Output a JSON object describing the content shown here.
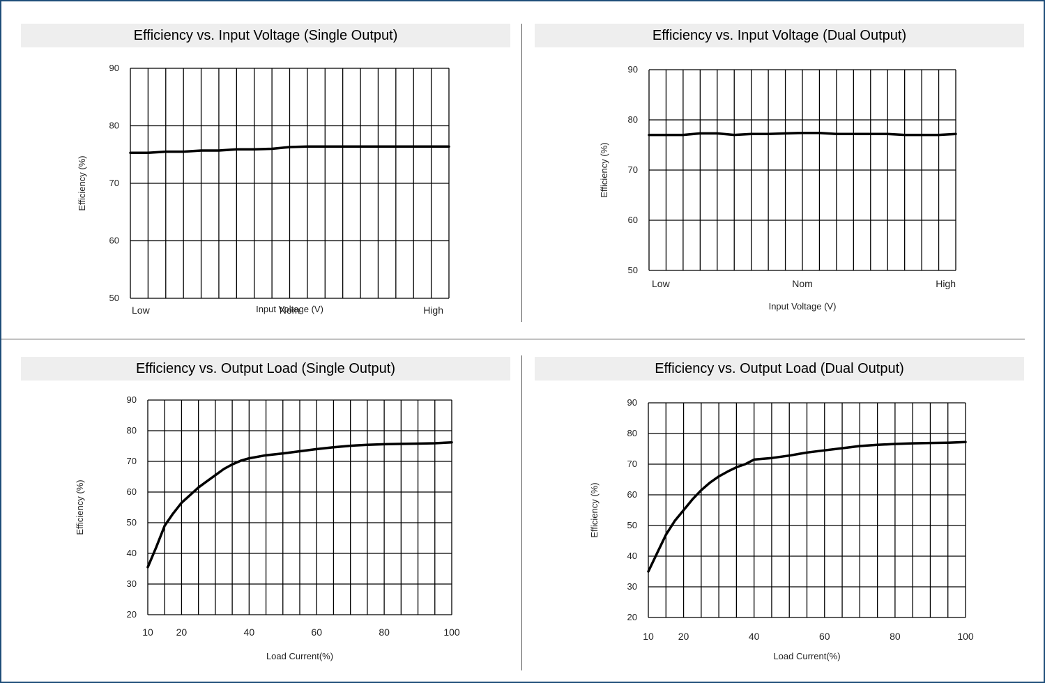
{
  "chart_data": [
    {
      "type": "line",
      "title": "Efficiency vs. Input Voltage (Single Output)",
      "xlabel": "Input Voltage (V)",
      "ylabel": "Efficiency (%)",
      "xlim": [
        0,
        18
      ],
      "ylim": [
        50,
        90
      ],
      "yticks": [
        50,
        60,
        70,
        80,
        90
      ],
      "xtick_labels": [
        {
          "x": 0,
          "label": "Low"
        },
        {
          "x": 9,
          "label": "Nom"
        },
        {
          "x": 18,
          "label": "High"
        }
      ],
      "grid": true,
      "series": [
        {
          "x": [
            0,
            1,
            2,
            3,
            4,
            5,
            6,
            7,
            8,
            9,
            10,
            11,
            12,
            13,
            14,
            15,
            16,
            17,
            18
          ],
          "y": [
            75.3,
            75.3,
            75.5,
            75.5,
            75.7,
            75.7,
            75.9,
            75.9,
            76.0,
            76.3,
            76.4,
            76.4,
            76.4,
            76.4,
            76.4,
            76.4,
            76.4,
            76.4,
            76.4
          ]
        }
      ]
    },
    {
      "type": "line",
      "title": "Efficiency vs. Input Voltage (Dual Output)",
      "xlabel": "Input Voltage (V)",
      "ylabel": "Efficiency (%)",
      "xlim": [
        0,
        18
      ],
      "ylim": [
        50,
        90
      ],
      "yticks": [
        50,
        60,
        70,
        80,
        90
      ],
      "xtick_labels": [
        {
          "x": 0,
          "label": "Low"
        },
        {
          "x": 9,
          "label": "Nom"
        },
        {
          "x": 18,
          "label": "High"
        }
      ],
      "grid": true,
      "series": [
        {
          "x": [
            0,
            1,
            2,
            3,
            4,
            5,
            6,
            7,
            8,
            9,
            10,
            11,
            12,
            13,
            14,
            15,
            16,
            17,
            18
          ],
          "y": [
            77.0,
            77.0,
            77.0,
            77.3,
            77.3,
            77.0,
            77.2,
            77.2,
            77.3,
            77.4,
            77.4,
            77.2,
            77.2,
            77.2,
            77.2,
            77.0,
            77.0,
            77.0,
            77.2
          ]
        }
      ]
    },
    {
      "type": "line",
      "title": "Efficiency vs. Output Load (Single Output)",
      "xlabel": "Load Current(%)",
      "ylabel": "Efficiency (%)",
      "xlim": [
        10,
        100
      ],
      "ylim": [
        20,
        90
      ],
      "yticks": [
        20,
        30,
        40,
        50,
        60,
        70,
        80,
        90
      ],
      "xtick_labels": [
        {
          "x": 10,
          "label": "10"
        },
        {
          "x": 20,
          "label": "20"
        },
        {
          "x": 40,
          "label": "40"
        },
        {
          "x": 60,
          "label": "60"
        },
        {
          "x": 80,
          "label": "80"
        },
        {
          "x": 100,
          "label": "100"
        }
      ],
      "grid": true,
      "series": [
        {
          "x": [
            10,
            12.5,
            15,
            17.5,
            20,
            22.5,
            25,
            27.5,
            30,
            32.5,
            35,
            37.5,
            40,
            45,
            50,
            55,
            60,
            65,
            70,
            75,
            80,
            85,
            90,
            95,
            100
          ],
          "y": [
            35.5,
            42,
            49,
            53,
            56.5,
            59,
            61.5,
            63.5,
            65.5,
            67.5,
            69,
            70.2,
            71,
            72,
            72.6,
            73.3,
            74,
            74.6,
            75.1,
            75.4,
            75.6,
            75.7,
            75.8,
            75.9,
            76.2
          ]
        }
      ]
    },
    {
      "type": "line",
      "title": "Efficiency vs. Output Load (Dual Output)",
      "xlabel": "Load Current(%)",
      "ylabel": "Efficiency (%)",
      "xlim": [
        10,
        100
      ],
      "ylim": [
        20,
        90
      ],
      "yticks": [
        20,
        30,
        40,
        50,
        60,
        70,
        80,
        90
      ],
      "xtick_labels": [
        {
          "x": 10,
          "label": "10"
        },
        {
          "x": 20,
          "label": "20"
        },
        {
          "x": 40,
          "label": "40"
        },
        {
          "x": 60,
          "label": "60"
        },
        {
          "x": 80,
          "label": "80"
        },
        {
          "x": 100,
          "label": "100"
        }
      ],
      "grid": true,
      "series": [
        {
          "x": [
            10,
            12.5,
            15,
            17.5,
            20,
            22.5,
            25,
            27.5,
            30,
            32.5,
            35,
            37.5,
            40,
            45,
            50,
            55,
            60,
            65,
            70,
            75,
            80,
            85,
            90,
            95,
            100
          ],
          "y": [
            35,
            41,
            47,
            51.5,
            55,
            58.5,
            61.5,
            64,
            66,
            67.6,
            69,
            70,
            71.5,
            72,
            72.8,
            73.8,
            74.5,
            75.2,
            75.9,
            76.3,
            76.6,
            76.8,
            76.9,
            77.0,
            77.2
          ]
        }
      ]
    }
  ]
}
